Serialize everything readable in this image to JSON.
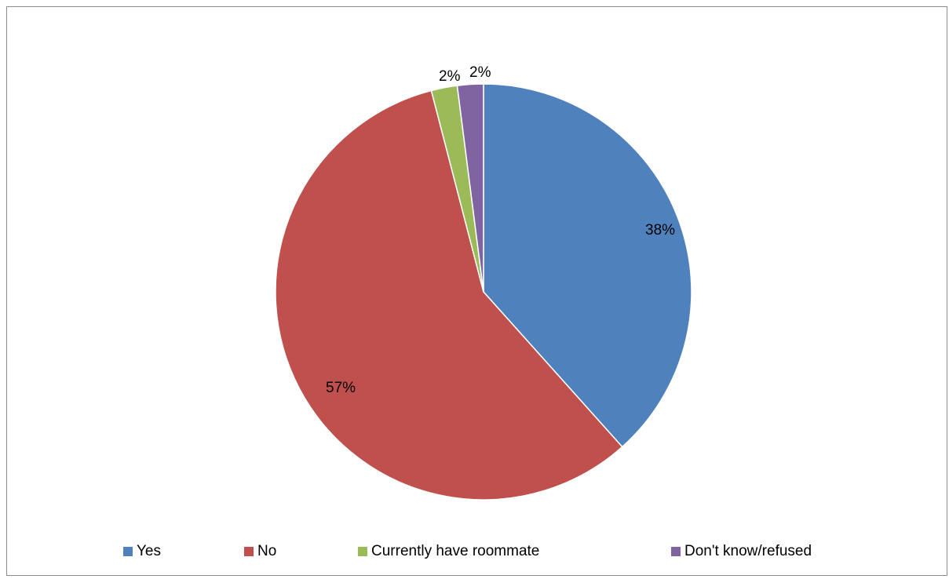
{
  "chart_data": {
    "type": "pie",
    "title": "",
    "slices": [
      {
        "name": "Yes",
        "value": 38,
        "label": "38%",
        "color": "#4F81BD"
      },
      {
        "name": "No",
        "value": 57,
        "label": "57%",
        "color": "#C0504D"
      },
      {
        "name": "Currently have roommate",
        "value": 2,
        "label": "2%",
        "color": "#9BBB59"
      },
      {
        "name": "Don't know/refused",
        "value": 2,
        "label": "2%",
        "color": "#8064A2"
      }
    ],
    "start_angle_deg": 0,
    "direction": "clockwise",
    "legend_position": "bottom"
  }
}
